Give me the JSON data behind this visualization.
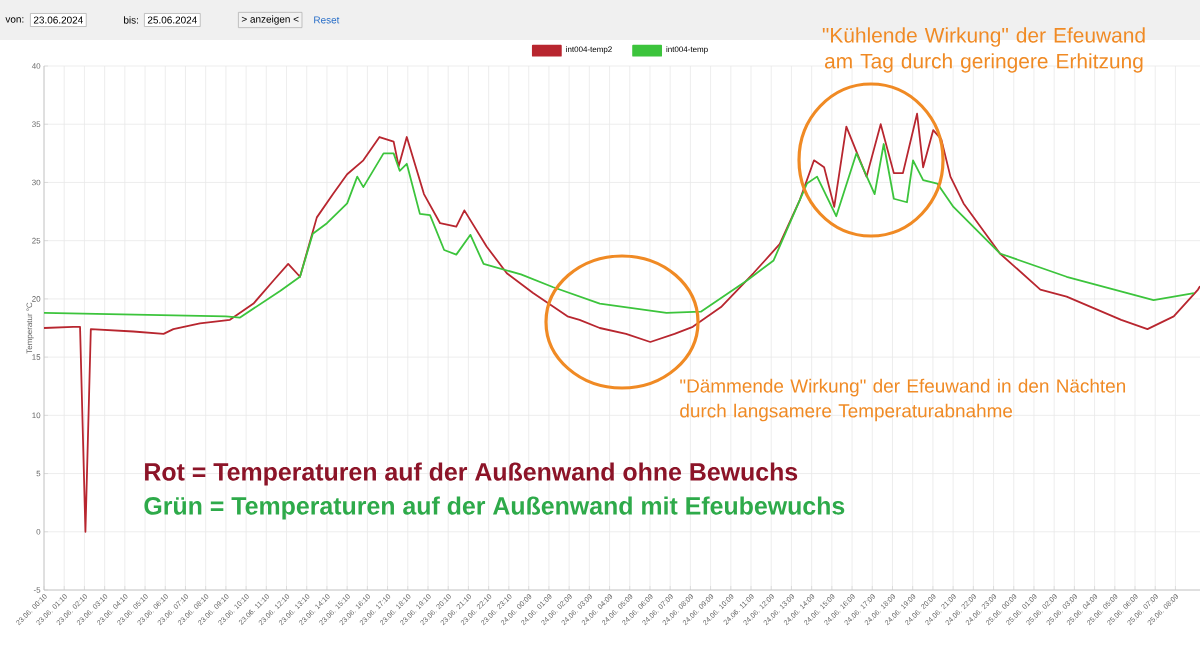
{
  "chart_data": {
    "type": "line",
    "ylabel": "Temperatur °C",
    "legend": "top",
    "grid": true,
    "marker": "none",
    "line_style": "solid",
    "xlim": [
      "2024-06-23T00:10",
      "2024-06-25T09:22"
    ],
    "ylim": [
      -5,
      40
    ],
    "yticks": [
      -5,
      0,
      5,
      10,
      15,
      20,
      25,
      30,
      35,
      40
    ],
    "xticks": [
      {
        "value": "2024-06-23T00:10",
        "label": "23.06. 00:10"
      },
      {
        "value": "2024-06-23T01:10",
        "label": "23.06. 01:10"
      },
      {
        "value": "2024-06-23T02:10",
        "label": "23.06. 02:10"
      },
      {
        "value": "2024-06-23T03:10",
        "label": "23.06. 03:10"
      },
      {
        "value": "2024-06-23T04:10",
        "label": "23.06. 04:10"
      },
      {
        "value": "2024-06-23T05:10",
        "label": "23.06. 05:10"
      },
      {
        "value": "2024-06-23T06:10",
        "label": "23.06. 06:10"
      },
      {
        "value": "2024-06-23T07:10",
        "label": "23.06. 07:10"
      },
      {
        "value": "2024-06-23T08:10",
        "label": "23.06. 08:10"
      },
      {
        "value": "2024-06-23T09:10",
        "label": "23.06. 09:10"
      },
      {
        "value": "2024-06-23T10:10",
        "label": "23.06. 10:10"
      },
      {
        "value": "2024-06-23T11:10",
        "label": "23.06. 11:10"
      },
      {
        "value": "2024-06-23T12:10",
        "label": "23.06. 12:10"
      },
      {
        "value": "2024-06-23T13:10",
        "label": "23.06. 13:10"
      },
      {
        "value": "2024-06-23T14:10",
        "label": "23.06. 14:10"
      },
      {
        "value": "2024-06-23T15:10",
        "label": "23.06. 15:10"
      },
      {
        "value": "2024-06-23T16:10",
        "label": "23.06. 16:10"
      },
      {
        "value": "2024-06-23T17:10",
        "label": "23.06. 17:10"
      },
      {
        "value": "2024-06-23T18:10",
        "label": "23.06. 18:10"
      },
      {
        "value": "2024-06-23T19:10",
        "label": "23.06. 19:10"
      },
      {
        "value": "2024-06-23T20:10",
        "label": "23.06. 20:10"
      },
      {
        "value": "2024-06-23T21:10",
        "label": "23.06. 21:10"
      },
      {
        "value": "2024-06-23T22:10",
        "label": "23.06. 22:10"
      },
      {
        "value": "2024-06-23T23:10",
        "label": "23.06. 23:10"
      },
      {
        "value": "2024-06-24T00:09",
        "label": "24.06. 00:09"
      },
      {
        "value": "2024-06-24T01:09",
        "label": "24.06. 01:09"
      },
      {
        "value": "2024-06-24T02:09",
        "label": "24.06. 02:09"
      },
      {
        "value": "2024-06-24T03:09",
        "label": "24.06. 03:09"
      },
      {
        "value": "2024-06-24T04:09",
        "label": "24.06. 04:09"
      },
      {
        "value": "2024-06-24T05:09",
        "label": "24.06. 05:09"
      },
      {
        "value": "2024-06-24T06:09",
        "label": "24.06. 06:09"
      },
      {
        "value": "2024-06-24T07:09",
        "label": "24.06. 07:09"
      },
      {
        "value": "2024-06-24T08:09",
        "label": "24.06. 08:09"
      },
      {
        "value": "2024-06-24T09:09",
        "label": "24.06. 09:09"
      },
      {
        "value": "2024-06-24T10:09",
        "label": "24.06. 10:09"
      },
      {
        "value": "2024-06-24T11:09",
        "label": "24.06. 11:09"
      },
      {
        "value": "2024-06-24T12:09",
        "label": "24.06. 12:09"
      },
      {
        "value": "2024-06-24T13:09",
        "label": "24.06. 13:09"
      },
      {
        "value": "2024-06-24T14:09",
        "label": "24.06. 14:09"
      },
      {
        "value": "2024-06-24T15:09",
        "label": "24.06. 15:09"
      },
      {
        "value": "2024-06-24T16:09",
        "label": "24.06. 16:09"
      },
      {
        "value": "2024-06-24T17:09",
        "label": "24.06. 17:09"
      },
      {
        "value": "2024-06-24T18:09",
        "label": "24.06. 18:09"
      },
      {
        "value": "2024-06-24T19:09",
        "label": "24.06. 19:09"
      },
      {
        "value": "2024-06-24T20:09",
        "label": "24.06. 20:09"
      },
      {
        "value": "2024-06-24T21:09",
        "label": "24.06. 21:09"
      },
      {
        "value": "2024-06-24T22:09",
        "label": "24.06. 22:09"
      },
      {
        "value": "2024-06-24T23:09",
        "label": "24.06. 23:09"
      },
      {
        "value": "2024-06-25T00:09",
        "label": "25.06. 00:09"
      },
      {
        "value": "2024-06-25T01:09",
        "label": "25.06. 01:09"
      },
      {
        "value": "2024-06-25T02:09",
        "label": "25.06. 02:09"
      },
      {
        "value": "2024-06-25T03:09",
        "label": "25.06. 03:09"
      },
      {
        "value": "2024-06-25T04:09",
        "label": "25.06. 04:09"
      },
      {
        "value": "2024-06-25T05:09",
        "label": "25.06. 05:09"
      },
      {
        "value": "2024-06-25T06:09",
        "label": "25.06. 06:09"
      },
      {
        "value": "2024-06-25T07:09",
        "label": "25.06. 07:09"
      },
      {
        "value": "2024-06-25T08:09",
        "label": "25.06. 08:09"
      }
    ],
    "series": [
      {
        "name": "int004-temp2",
        "color": "#b8262f",
        "x": [
          "2024-06-23T00:10",
          "2024-06-23T01:37",
          "2024-06-23T01:57",
          "2024-06-23T02:13",
          "2024-06-23T02:29",
          "2024-06-23T04:35",
          "2024-06-23T06:05",
          "2024-06-23T06:34",
          "2024-06-23T07:53",
          "2024-06-23T09:22",
          "2024-06-23T10:32",
          "2024-06-23T11:32",
          "2024-06-23T12:15",
          "2024-06-23T12:50",
          "2024-06-23T13:40",
          "2024-06-23T14:28",
          "2024-06-23T15:10",
          "2024-06-23T15:58",
          "2024-06-23T16:46",
          "2024-06-23T17:28",
          "2024-06-23T17:43",
          "2024-06-23T18:07",
          "2024-06-23T18:58",
          "2024-06-23T19:46",
          "2024-06-23T20:34",
          "2024-06-23T20:58",
          "2024-06-23T22:04",
          "2024-06-23T23:04",
          "2024-06-24T00:22",
          "2024-06-24T02:04",
          "2024-06-24T02:40",
          "2024-06-24T03:40",
          "2024-06-24T04:58",
          "2024-06-24T06:10",
          "2024-06-24T07:22",
          "2024-06-24T08:16",
          "2024-06-24T09:40",
          "2024-06-24T11:16",
          "2024-06-24T12:34",
          "2024-06-24T13:34",
          "2024-06-24T14:16",
          "2024-06-24T14:46",
          "2024-06-24T15:16",
          "2024-06-24T15:52",
          "2024-06-24T16:52",
          "2024-06-24T17:34",
          "2024-06-24T18:13",
          "2024-06-24T18:40",
          "2024-06-24T19:22",
          "2024-06-24T19:40",
          "2024-06-24T20:10",
          "2024-06-24T20:34",
          "2024-06-24T21:01",
          "2024-06-24T21:40",
          "2024-06-24T23:28",
          "2024-06-25T01:28",
          "2024-06-25T02:46",
          "2024-06-25T05:28",
          "2024-06-25T06:46",
          "2024-06-25T08:04",
          "2024-06-25T09:16",
          "2024-06-25T09:22"
        ],
        "values": [
          17.5,
          17.6,
          17.6,
          0,
          17.4,
          17.2,
          17.0,
          17.4,
          17.9,
          18.2,
          19.6,
          21.6,
          23.0,
          21.9,
          27.0,
          29.0,
          30.7,
          31.9,
          33.9,
          33.5,
          31.4,
          33.9,
          29.0,
          26.5,
          26.2,
          27.6,
          24.5,
          22.2,
          20.5,
          18.5,
          18.2,
          17.5,
          17.0,
          16.3,
          17.0,
          17.6,
          19.3,
          22.2,
          24.7,
          28.5,
          31.9,
          31.3,
          27.9,
          34.8,
          30.5,
          35.0,
          30.8,
          30.8,
          35.9,
          31.3,
          34.5,
          33.7,
          30.5,
          28.2,
          23.9,
          20.8,
          20.2,
          18.2,
          17.4,
          18.5,
          20.8,
          21.1
        ]
      },
      {
        "name": "int004-temp",
        "color": "#3cc43c",
        "x": [
          "2024-06-23T00:10",
          "2024-06-23T09:10",
          "2024-06-23T09:52",
          "2024-06-23T11:52",
          "2024-06-23T12:50",
          "2024-06-23T13:28",
          "2024-06-23T14:10",
          "2024-06-23T15:10",
          "2024-06-23T15:40",
          "2024-06-23T15:58",
          "2024-06-23T16:58",
          "2024-06-23T17:28",
          "2024-06-23T17:46",
          "2024-06-23T18:07",
          "2024-06-23T18:46",
          "2024-06-23T19:16",
          "2024-06-23T19:58",
          "2024-06-23T20:34",
          "2024-06-23T21:16",
          "2024-06-23T21:55",
          "2024-06-23T23:46",
          "2024-06-24T01:22",
          "2024-06-24T03:40",
          "2024-06-24T06:58",
          "2024-06-24T08:40",
          "2024-06-24T10:58",
          "2024-06-24T12:16",
          "2024-06-24T13:55",
          "2024-06-24T14:25",
          "2024-06-24T15:22",
          "2024-06-24T16:22",
          "2024-06-24T17:16",
          "2024-06-24T17:43",
          "2024-06-24T18:13",
          "2024-06-24T18:52",
          "2024-06-24T19:10",
          "2024-06-24T19:40",
          "2024-06-24T20:22",
          "2024-06-24T21:10",
          "2024-06-24T23:28",
          "2024-06-25T02:46",
          "2024-06-25T07:04",
          "2024-06-25T09:04"
        ],
        "values": [
          18.8,
          18.5,
          18.4,
          20.7,
          21.9,
          25.6,
          26.5,
          28.2,
          30.5,
          29.6,
          32.5,
          32.5,
          31.0,
          31.6,
          27.3,
          27.2,
          24.2,
          23.8,
          25.5,
          23.0,
          22.1,
          21.0,
          19.6,
          18.8,
          18.9,
          21.6,
          23.3,
          29.9,
          30.5,
          27.1,
          32.5,
          29.0,
          33.3,
          28.6,
          28.3,
          31.9,
          30.2,
          29.9,
          27.9,
          23.9,
          21.9,
          19.9,
          20.5
        ]
      }
    ],
    "annotations": [
      "von:",
      "23.06.2024",
      "bis:",
      "25.06.2024",
      "> anzeigen <",
      "Reset",
      "\"Kühlende Wirkung\" der Efeuwand am Tag durch geringere Erhitzung",
      "\"Dämmende Wirkung\" der Efeuwand in den Nächten durch langsamere Temperaturabnahme",
      "Rot = Temperaturen auf der Außenwand ohne Bewuchs",
      "Grün = Temperaturen auf der Außenwand mit Efeubewuchs"
    ]
  }
}
